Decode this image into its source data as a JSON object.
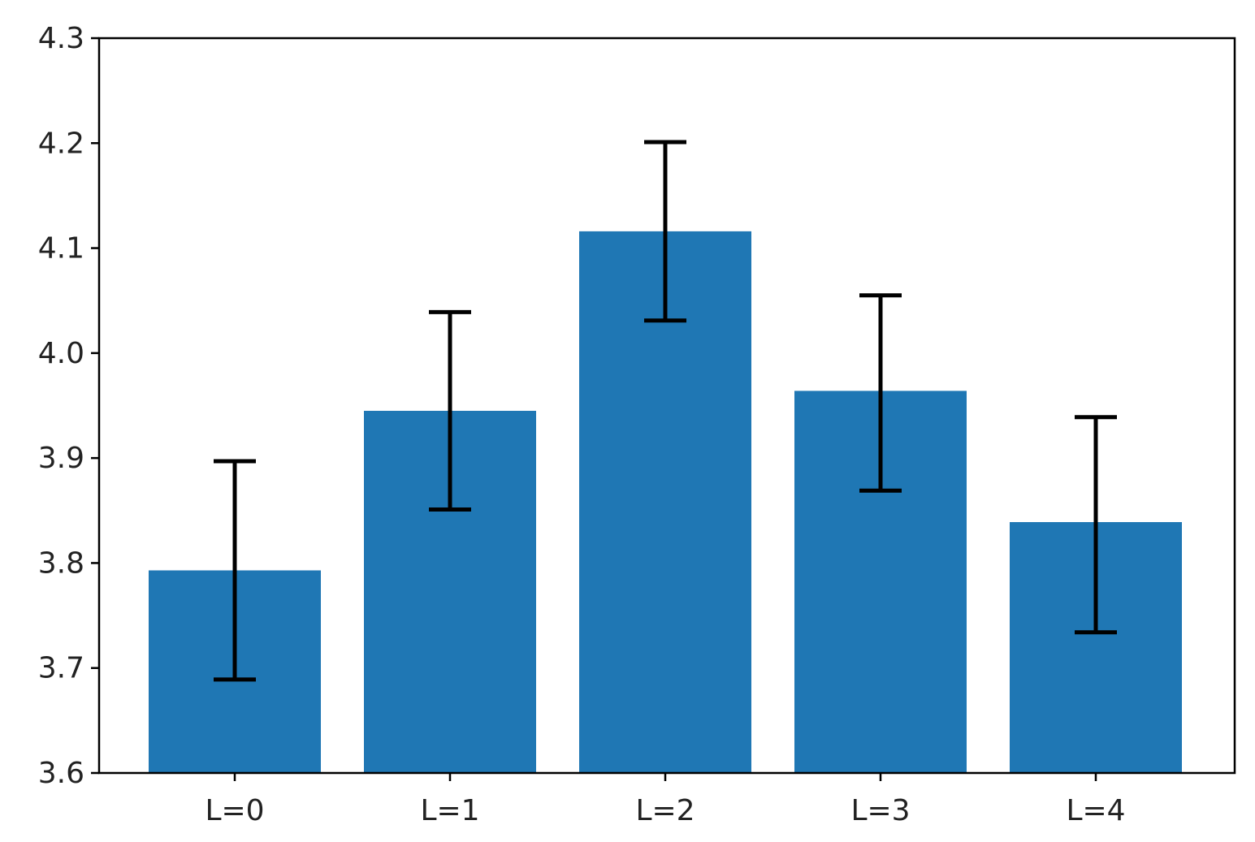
{
  "chart_data": {
    "type": "bar",
    "title": "",
    "xlabel": "",
    "ylabel": "",
    "categories": [
      "L=0",
      "L=1",
      "L=2",
      "L=3",
      "L=4"
    ],
    "values": [
      3.793,
      3.945,
      4.116,
      3.964,
      3.839
    ],
    "error_bars": {
      "lower": [
        3.689,
        3.851,
        4.031,
        3.869,
        3.734
      ],
      "upper": [
        3.897,
        4.039,
        4.201,
        4.055,
        3.939
      ]
    },
    "ylim": [
      3.6,
      4.3
    ],
    "yticks": [
      "3.6",
      "3.7",
      "3.8",
      "3.9",
      "4.0",
      "4.1",
      "4.2",
      "4.3"
    ],
    "bar_color": "#1f77b4",
    "errbar_color": "#000000",
    "grid": false,
    "legend": false
  }
}
